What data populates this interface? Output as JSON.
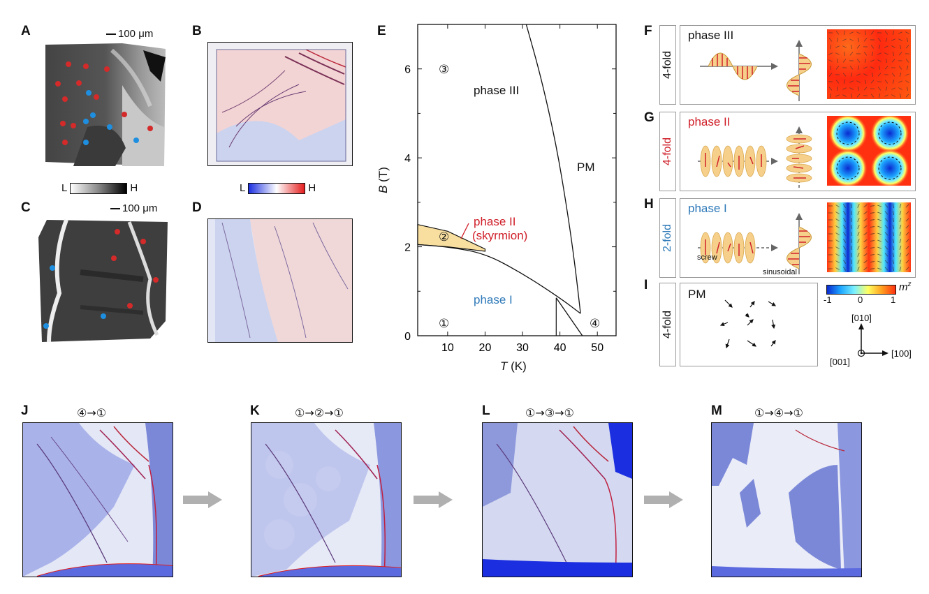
{
  "panels": {
    "A": "A",
    "B": "B",
    "C": "C",
    "D": "D",
    "E": "E",
    "F": "F",
    "G": "G",
    "H": "H",
    "I": "I",
    "J": "J",
    "K": "K",
    "L": "L",
    "M": "M"
  },
  "scale_bar": "100 μm",
  "colorbars": {
    "gray": {
      "low": "L",
      "high": "H"
    },
    "bwr": {
      "low": "L",
      "high": "H"
    },
    "mz": {
      "label": "m",
      "sup": "z",
      "ticks": [
        "-1",
        "0",
        "1"
      ]
    }
  },
  "phase_diagram": {
    "xlabel_var": "T",
    "xlabel_unit": " (K)",
    "ylabel_var": "B",
    "ylabel_unit": " (T)",
    "xticks": [
      "10",
      "20",
      "30",
      "40",
      "50"
    ],
    "yticks": [
      "0",
      "2",
      "4",
      "6"
    ],
    "labels": {
      "phase3": "phase III",
      "pm": "PM",
      "phase2": "phase II",
      "skyrmion": "(skyrmion)",
      "phase1": "phase I"
    },
    "markers": {
      "m1": "①",
      "m2": "②",
      "m3": "③",
      "m4": "④"
    }
  },
  "chart_data": {
    "type": "line",
    "title": "",
    "xlabel": "T (K)",
    "ylabel": "B (T)",
    "xlim": [
      2,
      55
    ],
    "ylim": [
      0,
      7
    ],
    "series": [
      {
        "name": "phase III / PM boundary",
        "x": [
          31,
          35,
          39,
          42,
          44,
          45.5
        ],
        "y": [
          7.0,
          5.8,
          4.3,
          2.8,
          1.6,
          0.5
        ]
      },
      {
        "name": "phase I upper boundary",
        "x": [
          2,
          10,
          20,
          30,
          40,
          45.5
        ],
        "y": [
          2.05,
          2.0,
          1.85,
          1.4,
          0.85,
          0.5
        ]
      },
      {
        "name": "phase II pocket upper",
        "x": [
          2,
          10,
          20
        ],
        "y": [
          2.5,
          2.35,
          1.95
        ]
      },
      {
        "name": "phase II pocket lower",
        "x": [
          2,
          10,
          20
        ],
        "y": [
          2.05,
          2.0,
          1.9
        ]
      },
      {
        "name": "phase I / PM boundary",
        "x": [
          39,
          46
        ],
        "y": [
          0.85,
          0.0
        ]
      },
      {
        "name": "vertical line at 39 K",
        "x": [
          39,
          39
        ],
        "y": [
          0,
          0.85
        ]
      }
    ],
    "markers": [
      {
        "label": "①",
        "T": 10,
        "B": 0.15
      },
      {
        "label": "②",
        "T": 10,
        "B": 2.2
      },
      {
        "label": "③",
        "T": 10,
        "B": 6.0
      },
      {
        "label": "④",
        "T": 50,
        "B": 0.15
      }
    ]
  },
  "right_panels": {
    "F": {
      "fold": "4-fold",
      "phase": "phase III",
      "color": "#111111"
    },
    "G": {
      "fold": "4-fold",
      "phase": "phase II",
      "color": "#d0202a"
    },
    "H": {
      "fold": "2-fold",
      "phase": "phase I",
      "color": "#2f7ab9",
      "screw": "screw",
      "sinusoidal": "sinusoidal"
    },
    "I": {
      "fold": "4-fold",
      "phase": "PM",
      "color": "#111111"
    }
  },
  "axes_labels": {
    "a010": "[010]",
    "a100": "[100]",
    "a001": "[001]"
  },
  "sequences": {
    "J": "④→①",
    "K": "①→②→①",
    "L": "①→③→①",
    "M": "①→④→①"
  },
  "colors": {
    "red": "#d42a2a",
    "blue": "#2f7ab9",
    "phase2_fill": "#f8dfa0"
  }
}
